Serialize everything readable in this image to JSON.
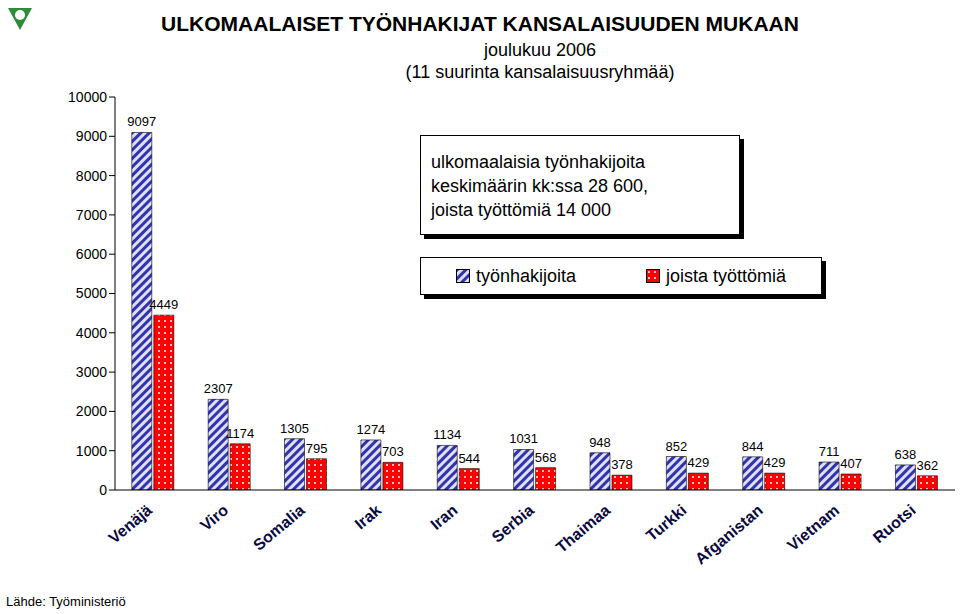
{
  "chart_data": {
    "type": "bar",
    "title": "ULKOMAALAISET TYÖNHAKIJAT KANSALAISUUDEN MUKAAN",
    "subtitle": [
      "joulukuu 2006",
      "(11 suurinta kansalaisuusryhmää)"
    ],
    "annotation": [
      "ulkomaalaisia työnhakijoita",
      "keskimäärin kk:ssa 28 600,",
      "joista työttömiä 14 000"
    ],
    "source": "Lähde: Työministeriö",
    "categories": [
      "Venäjä",
      "Viro",
      "Somalia",
      "Irak",
      "Iran",
      "Serbia",
      "Thaimaa",
      "Turkki",
      "Afganistan",
      "Vietnam",
      "Ruotsi"
    ],
    "series": [
      {
        "name": "työnhakijoita",
        "color": "#3333aa",
        "values": [
          9097,
          2307,
          1305,
          1274,
          1134,
          1031,
          948,
          852,
          844,
          711,
          638
        ]
      },
      {
        "name": "joista työttömiä",
        "color": "#ff0000",
        "values": [
          4449,
          1174,
          795,
          703,
          544,
          568,
          378,
          429,
          429,
          407,
          362
        ]
      }
    ],
    "ylim": [
      0,
      10000
    ],
    "yticks": [
      0,
      1000,
      2000,
      3000,
      4000,
      5000,
      6000,
      7000,
      8000,
      9000,
      10000
    ],
    "grid": false,
    "legend": "upper right",
    "data_labels": true
  }
}
